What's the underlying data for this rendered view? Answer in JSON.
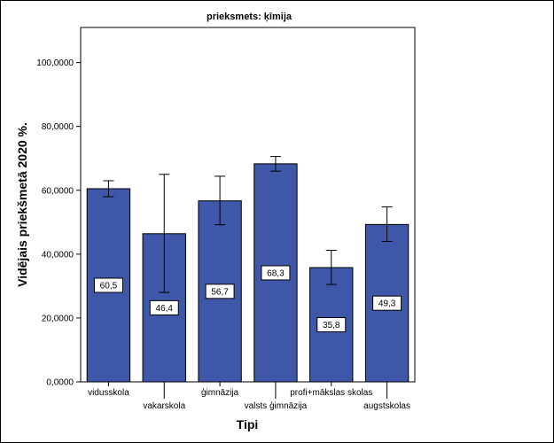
{
  "chart_data": {
    "type": "bar",
    "title": "prieksmets: ķīmija",
    "xlabel": "Tipi",
    "ylabel": "Vidējais priekšmetā 2020 %.",
    "ylim": [
      0,
      111
    ],
    "yticks": [
      "0,0000",
      "20,0000",
      "40,0000",
      "60,0000",
      "80,0000",
      "100,0000"
    ],
    "ytick_values": [
      0,
      20,
      40,
      60,
      80,
      100
    ],
    "categories": [
      "vidusskola",
      "vakarskola",
      "ģimnāzija",
      "valsts ģimnāzija",
      "profi+mākslas skolas",
      "augstskolas"
    ],
    "values": [
      60.5,
      46.4,
      56.7,
      68.3,
      35.8,
      49.3
    ],
    "value_labels": [
      "60,5",
      "46,4",
      "56,7",
      "68,3",
      "35,8",
      "49,3"
    ],
    "error_low": [
      58.0,
      28.0,
      49.2,
      66.0,
      30.5,
      44.0
    ],
    "error_high": [
      63.0,
      65.0,
      64.4,
      70.6,
      41.2,
      54.8
    ],
    "bar_color": "#3f57a8",
    "grid": false,
    "legend": "none"
  }
}
